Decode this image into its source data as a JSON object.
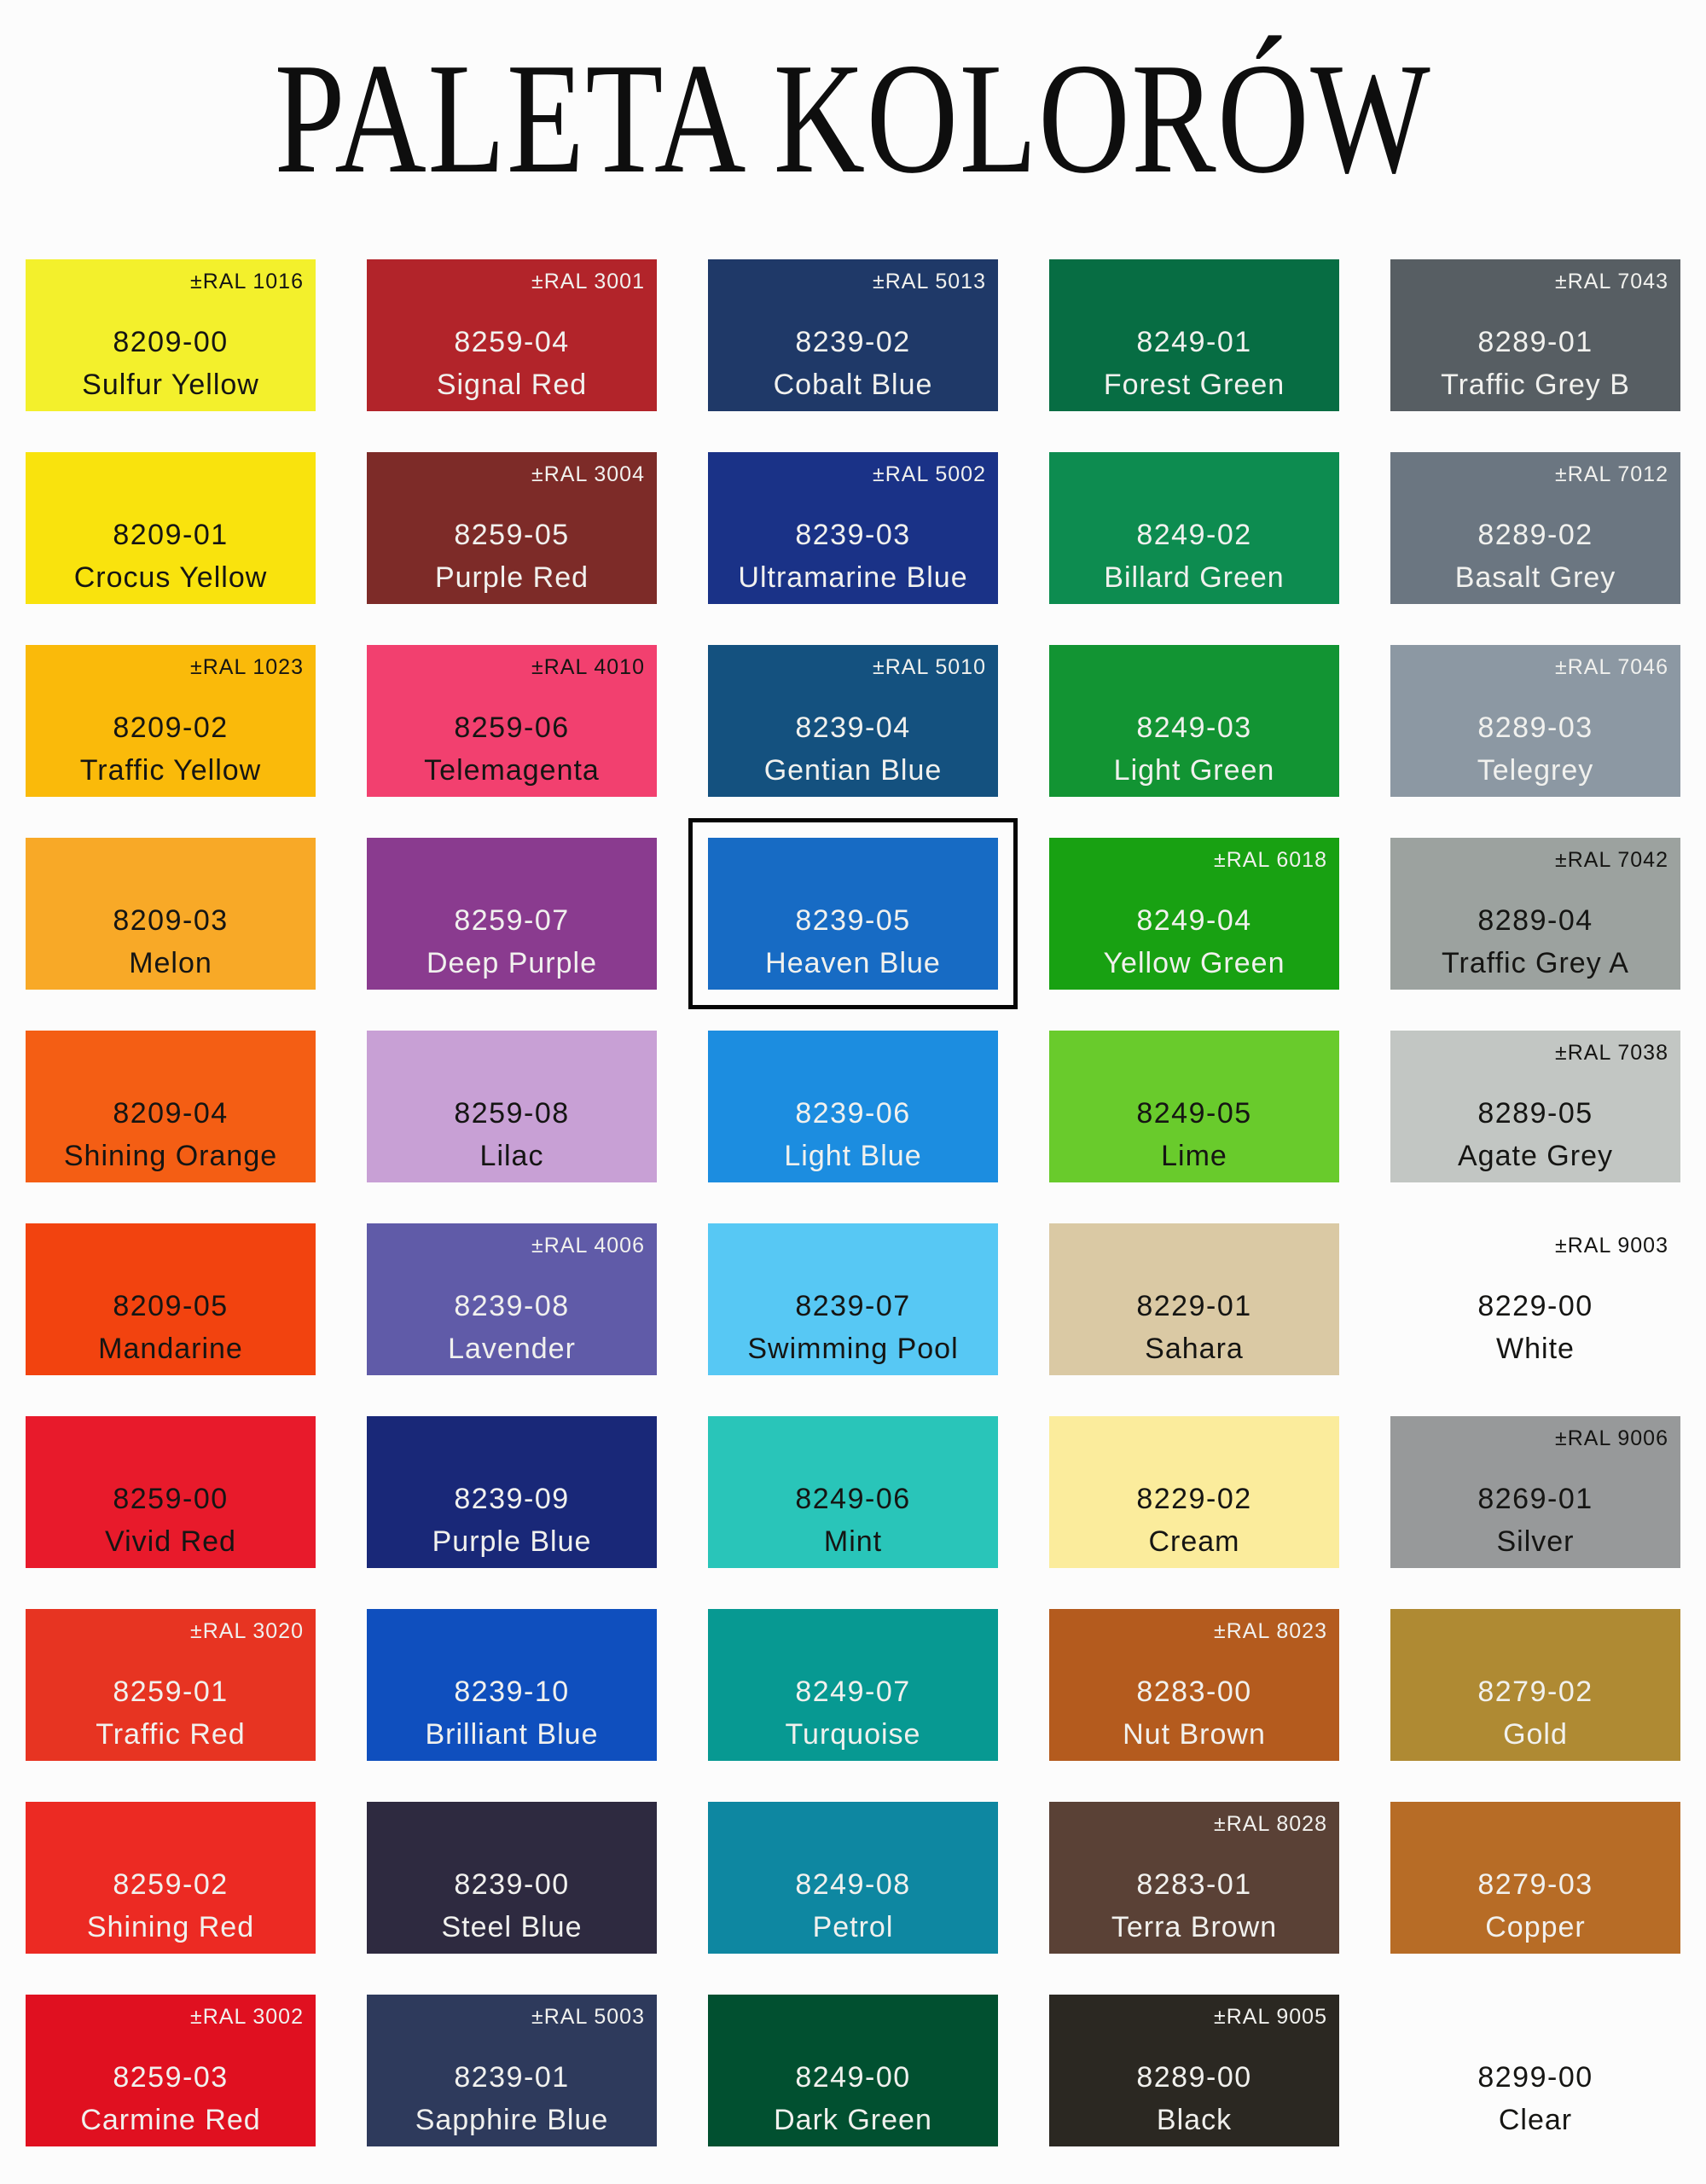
{
  "title": "PALETA KOLORÓW",
  "selection_frame_color": "#000000",
  "background_color": "#FCFCFC",
  "palette": {
    "columns": 5,
    "rows": 10,
    "swatches": [
      {
        "code": "8209-00",
        "name": "Sulfur Yellow",
        "ral": "±RAL 1016",
        "color": "#F3F02C",
        "text": "dark",
        "selected": false
      },
      {
        "code": "8259-04",
        "name": "Signal Red",
        "ral": "±RAL 3001",
        "color": "#B2242A",
        "text": "light",
        "selected": false
      },
      {
        "code": "8239-02",
        "name": "Cobalt Blue",
        "ral": "±RAL 5013",
        "color": "#1F3968",
        "text": "light",
        "selected": false
      },
      {
        "code": "8249-01",
        "name": "Forest Green",
        "ral": "",
        "color": "#076D43",
        "text": "light",
        "selected": false
      },
      {
        "code": "8289-01",
        "name": "Traffic Grey B",
        "ral": "±RAL 7043",
        "color": "#575E63",
        "text": "light",
        "selected": false
      },
      {
        "code": "8209-01",
        "name": "Crocus Yellow",
        "ral": "",
        "color": "#F9E30D",
        "text": "dark",
        "selected": false
      },
      {
        "code": "8259-05",
        "name": "Purple Red",
        "ral": "±RAL 3004",
        "color": "#7D2B28",
        "text": "light",
        "selected": false
      },
      {
        "code": "8239-03",
        "name": "Ultramarine Blue",
        "ral": "±RAL 5002",
        "color": "#1A3287",
        "text": "light",
        "selected": false
      },
      {
        "code": "8249-02",
        "name": "Billard Green",
        "ral": "",
        "color": "#0D8C50",
        "text": "light",
        "selected": false
      },
      {
        "code": "8289-02",
        "name": "Basalt Grey",
        "ral": "±RAL 7012",
        "color": "#6B7681",
        "text": "light",
        "selected": false
      },
      {
        "code": "8209-02",
        "name": "Traffic Yellow",
        "ral": "±RAL 1023",
        "color": "#FABA0A",
        "text": "dark",
        "selected": false
      },
      {
        "code": "8259-06",
        "name": "Telemagenta",
        "ral": "±RAL 4010",
        "color": "#F2406F",
        "text": "dark",
        "selected": false
      },
      {
        "code": "8239-04",
        "name": "Gentian Blue",
        "ral": "±RAL 5010",
        "color": "#14517F",
        "text": "light",
        "selected": false
      },
      {
        "code": "8249-03",
        "name": "Light Green",
        "ral": "",
        "color": "#129433",
        "text": "light",
        "selected": false
      },
      {
        "code": "8289-03",
        "name": "Telegrey",
        "ral": "±RAL 7046",
        "color": "#8C98A3",
        "text": "light",
        "selected": false
      },
      {
        "code": "8209-03",
        "name": "Melon",
        "ral": "",
        "color": "#F8A927",
        "text": "dark",
        "selected": false
      },
      {
        "code": "8259-07",
        "name": "Deep Purple",
        "ral": "",
        "color": "#8A3B8F",
        "text": "light",
        "selected": false
      },
      {
        "code": "8239-05",
        "name": "Heaven Blue",
        "ral": "",
        "color": "#176BC4",
        "text": "light",
        "selected": true
      },
      {
        "code": "8249-04",
        "name": "Yellow Green",
        "ral": "±RAL 6018",
        "color": "#18A112",
        "text": "light",
        "selected": false
      },
      {
        "code": "8289-04",
        "name": "Traffic Grey A",
        "ral": "±RAL 7042",
        "color": "#9CA29F",
        "text": "dark",
        "selected": false
      },
      {
        "code": "8209-04",
        "name": "Shining Orange",
        "ral": "",
        "color": "#F45E14",
        "text": "dark",
        "selected": false
      },
      {
        "code": "8259-08",
        "name": "Lilac",
        "ral": "",
        "color": "#C8A0D5",
        "text": "dark",
        "selected": false
      },
      {
        "code": "8239-06",
        "name": "Light Blue",
        "ral": "",
        "color": "#1C8DE0",
        "text": "light",
        "selected": false
      },
      {
        "code": "8249-05",
        "name": "Lime",
        "ral": "",
        "color": "#69CB2C",
        "text": "dark",
        "selected": false
      },
      {
        "code": "8289-05",
        "name": "Agate Grey",
        "ral": "±RAL 7038",
        "color": "#C2C6C3",
        "text": "dark",
        "selected": false
      },
      {
        "code": "8209-05",
        "name": "Mandarine",
        "ral": "",
        "color": "#F2430F",
        "text": "dark",
        "selected": false
      },
      {
        "code": "8239-08",
        "name": "Lavender",
        "ral": "±RAL 4006",
        "color": "#605BA8",
        "text": "light",
        "selected": false
      },
      {
        "code": "8239-07",
        "name": "Swimming Pool",
        "ral": "",
        "color": "#57C8F4",
        "text": "dark",
        "selected": false
      },
      {
        "code": "8229-01",
        "name": "Sahara",
        "ral": "",
        "color": "#DAC9A4",
        "text": "dark",
        "selected": false
      },
      {
        "code": "8229-00",
        "name": "White",
        "ral": "±RAL 9003",
        "color": "transparent",
        "text": "dark",
        "selected": false
      },
      {
        "code": "8259-00",
        "name": "Vivid Red",
        "ral": "",
        "color": "#E81A2B",
        "text": "dark",
        "selected": false
      },
      {
        "code": "8239-09",
        "name": "Purple Blue",
        "ral": "",
        "color": "#192878",
        "text": "light",
        "selected": false
      },
      {
        "code": "8249-06",
        "name": "Mint",
        "ral": "",
        "color": "#29C5B9",
        "text": "dark",
        "selected": false
      },
      {
        "code": "8229-02",
        "name": "Cream",
        "ral": "",
        "color": "#FBEC9C",
        "text": "dark",
        "selected": false
      },
      {
        "code": "8269-01",
        "name": "Silver",
        "ral": "±RAL 9006",
        "color": "#97999A",
        "text": "dark",
        "selected": false
      },
      {
        "code": "8259-01",
        "name": "Traffic Red",
        "ral": "±RAL 3020",
        "color": "#E73422",
        "text": "light",
        "selected": false
      },
      {
        "code": "8239-10",
        "name": "Brilliant Blue",
        "ral": "",
        "color": "#0F4FBE",
        "text": "light",
        "selected": false
      },
      {
        "code": "8249-07",
        "name": "Turquoise",
        "ral": "",
        "color": "#079992",
        "text": "light",
        "selected": false
      },
      {
        "code": "8283-00",
        "name": "Nut Brown",
        "ral": "±RAL 8023",
        "color": "#B45B1E",
        "text": "light",
        "selected": false
      },
      {
        "code": "8279-02",
        "name": "Gold",
        "ral": "",
        "color": "#AF8A33",
        "text": "light",
        "selected": false
      },
      {
        "code": "8259-02",
        "name": "Shining Red",
        "ral": "",
        "color": "#EC2A23",
        "text": "light",
        "selected": false
      },
      {
        "code": "8239-00",
        "name": "Steel Blue",
        "ral": "",
        "color": "#2E2A40",
        "text": "light",
        "selected": false
      },
      {
        "code": "8249-08",
        "name": "Petrol",
        "ral": "",
        "color": "#0E87A1",
        "text": "light",
        "selected": false
      },
      {
        "code": "8283-01",
        "name": "Terra Brown",
        "ral": "±RAL 8028",
        "color": "#5A4136",
        "text": "light",
        "selected": false
      },
      {
        "code": "8279-03",
        "name": "Copper",
        "ral": "",
        "color": "#B76C26",
        "text": "light",
        "selected": false
      },
      {
        "code": "8259-03",
        "name": "Carmine Red",
        "ral": "±RAL 3002",
        "color": "#E01020",
        "text": "light",
        "selected": false
      },
      {
        "code": "8239-01",
        "name": "Sapphire Blue",
        "ral": "±RAL 5003",
        "color": "#2E3A5C",
        "text": "light",
        "selected": false
      },
      {
        "code": "8249-00",
        "name": "Dark Green",
        "ral": "",
        "color": "#015030",
        "text": "light",
        "selected": false
      },
      {
        "code": "8289-00",
        "name": "Black",
        "ral": "±RAL 9005",
        "color": "#2B2822",
        "text": "light",
        "selected": false
      },
      {
        "code": "8299-00",
        "name": "Clear",
        "ral": "",
        "color": "transparent",
        "text": "dark",
        "selected": false
      }
    ]
  }
}
